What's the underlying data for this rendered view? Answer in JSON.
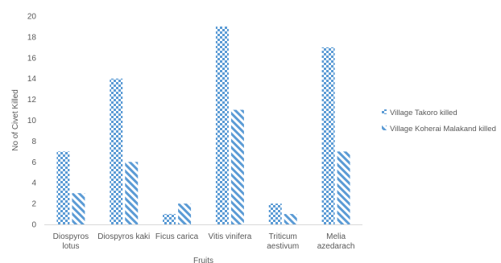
{
  "chart_data": {
    "type": "bar",
    "title": "",
    "xlabel": "Fruits",
    "ylabel": "No of Civet Killed",
    "ylim": [
      0,
      20
    ],
    "ytick_step": 2,
    "grid": false,
    "legend_position": "right",
    "categories": [
      [
        "Diospyros",
        "lotus"
      ],
      [
        "Diospyros kaki"
      ],
      [
        "Ficus carica"
      ],
      [
        "Vitis vinifera"
      ],
      [
        "Triticum",
        "aestivum"
      ],
      [
        "Melia",
        "azedarach"
      ]
    ],
    "series": [
      {
        "name": "Village Takoro killed",
        "values": [
          7,
          14,
          1,
          19,
          2,
          17
        ],
        "pattern": "checker",
        "color": "#5b9bd5"
      },
      {
        "name": "Village Koherai Malakand killed",
        "values": [
          3,
          6,
          2,
          11,
          1,
          7
        ],
        "pattern": "diagonal",
        "color": "#5b9bd5"
      }
    ]
  }
}
